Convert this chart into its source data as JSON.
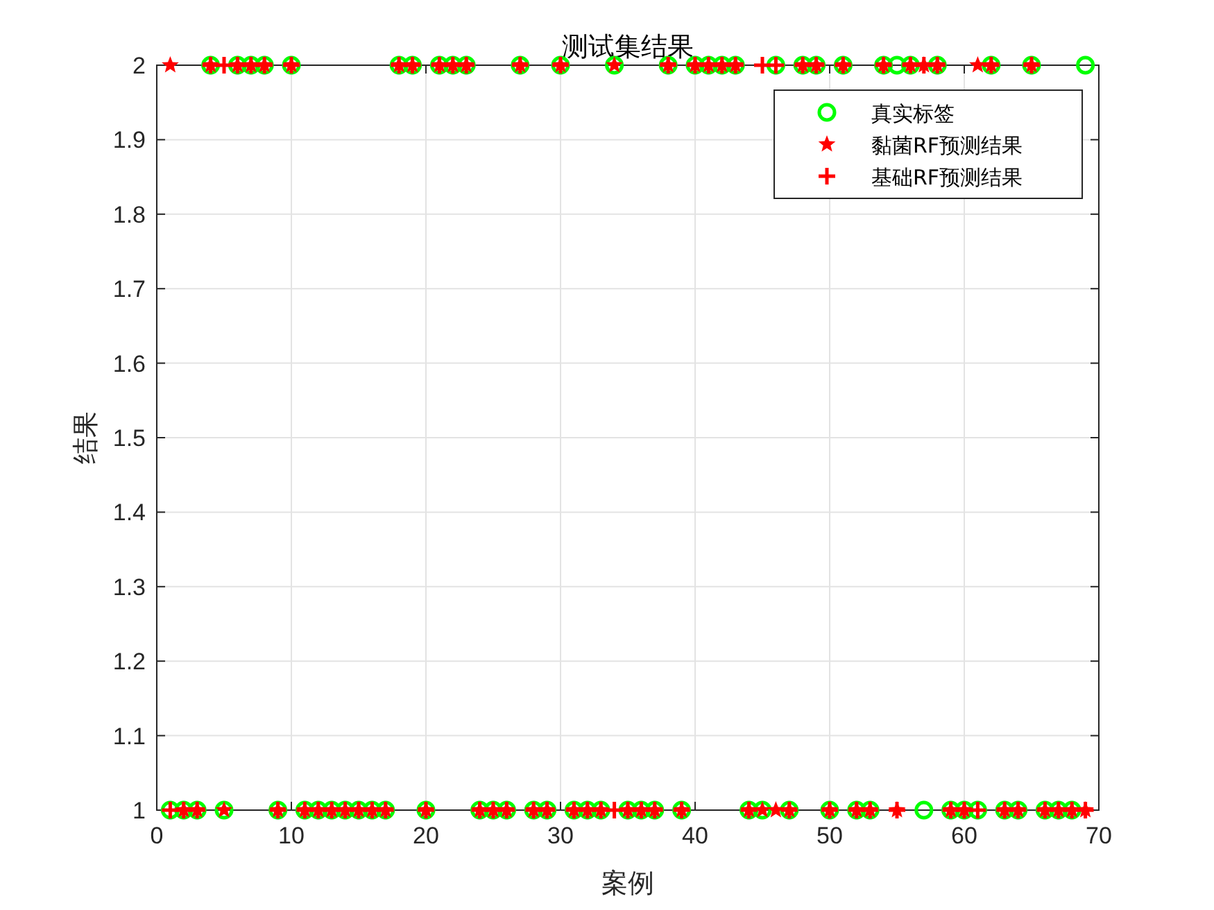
{
  "chart_data": {
    "type": "scatter",
    "title": "测试集结果",
    "xlabel": "案例",
    "ylabel": "结果",
    "x": [
      1,
      2,
      3,
      4,
      5,
      6,
      7,
      8,
      9,
      10,
      11,
      12,
      13,
      14,
      15,
      16,
      17,
      18,
      19,
      20,
      21,
      22,
      23,
      24,
      25,
      26,
      27,
      28,
      29,
      30,
      31,
      32,
      33,
      34,
      35,
      36,
      37,
      38,
      39,
      40,
      41,
      42,
      43,
      44,
      45,
      46,
      47,
      48,
      49,
      50,
      51,
      52,
      53,
      54,
      55,
      56,
      57,
      58,
      59,
      60,
      61,
      62,
      63,
      64,
      65,
      66,
      67,
      68,
      69
    ],
    "series": [
      {
        "name": "真实标签",
        "color": "#00ff00",
        "marker": "circle",
        "values": [
          1,
          1,
          1,
          2,
          1,
          2,
          2,
          2,
          1,
          2,
          1,
          1,
          1,
          1,
          1,
          1,
          1,
          2,
          2,
          1,
          2,
          2,
          2,
          1,
          1,
          1,
          2,
          1,
          1,
          2,
          1,
          1,
          1,
          2,
          1,
          1,
          1,
          2,
          1,
          2,
          2,
          2,
          2,
          1,
          1,
          2,
          1,
          2,
          2,
          1,
          2,
          1,
          1,
          2,
          2,
          2,
          1,
          2,
          1,
          1,
          1,
          2,
          1,
          1,
          2,
          1,
          1,
          1,
          2
        ]
      },
      {
        "name": "黏菌RF预测结果",
        "color": "#ff0000",
        "marker": "star",
        "values": [
          2,
          1,
          1,
          2,
          1,
          2,
          2,
          2,
          1,
          2,
          1,
          1,
          1,
          1,
          1,
          1,
          1,
          2,
          2,
          1,
          2,
          2,
          2,
          1,
          1,
          1,
          2,
          1,
          1,
          2,
          1,
          1,
          1,
          2,
          1,
          1,
          1,
          2,
          1,
          2,
          2,
          2,
          2,
          1,
          1,
          1,
          1,
          2,
          2,
          1,
          2,
          1,
          1,
          2,
          1,
          2,
          2,
          2,
          1,
          1,
          2,
          2,
          1,
          1,
          2,
          1,
          1,
          1,
          1
        ]
      },
      {
        "name": "基础RF预测结果",
        "color": "#ff0000",
        "marker": "cross",
        "values": [
          1,
          1,
          1,
          2,
          2,
          2,
          2,
          2,
          1,
          2,
          1,
          1,
          1,
          1,
          1,
          1,
          1,
          2,
          2,
          1,
          2,
          2,
          2,
          1,
          1,
          1,
          2,
          1,
          1,
          2,
          1,
          1,
          1,
          1,
          1,
          1,
          1,
          2,
          1,
          2,
          2,
          2,
          2,
          1,
          2,
          2,
          1,
          2,
          2,
          1,
          2,
          1,
          1,
          2,
          1,
          2,
          2,
          2,
          1,
          1,
          1,
          2,
          1,
          1,
          2,
          1,
          1,
          1,
          1
        ]
      }
    ],
    "xlim": [
      0,
      70
    ],
    "ylim": [
      1,
      2
    ],
    "xticks": [
      0,
      10,
      20,
      30,
      40,
      50,
      60,
      70
    ],
    "yticks": [
      1,
      1.1,
      1.2,
      1.3,
      1.4,
      1.5,
      1.6,
      1.7,
      1.8,
      1.9,
      2
    ],
    "grid": true,
    "legend": "top right"
  }
}
